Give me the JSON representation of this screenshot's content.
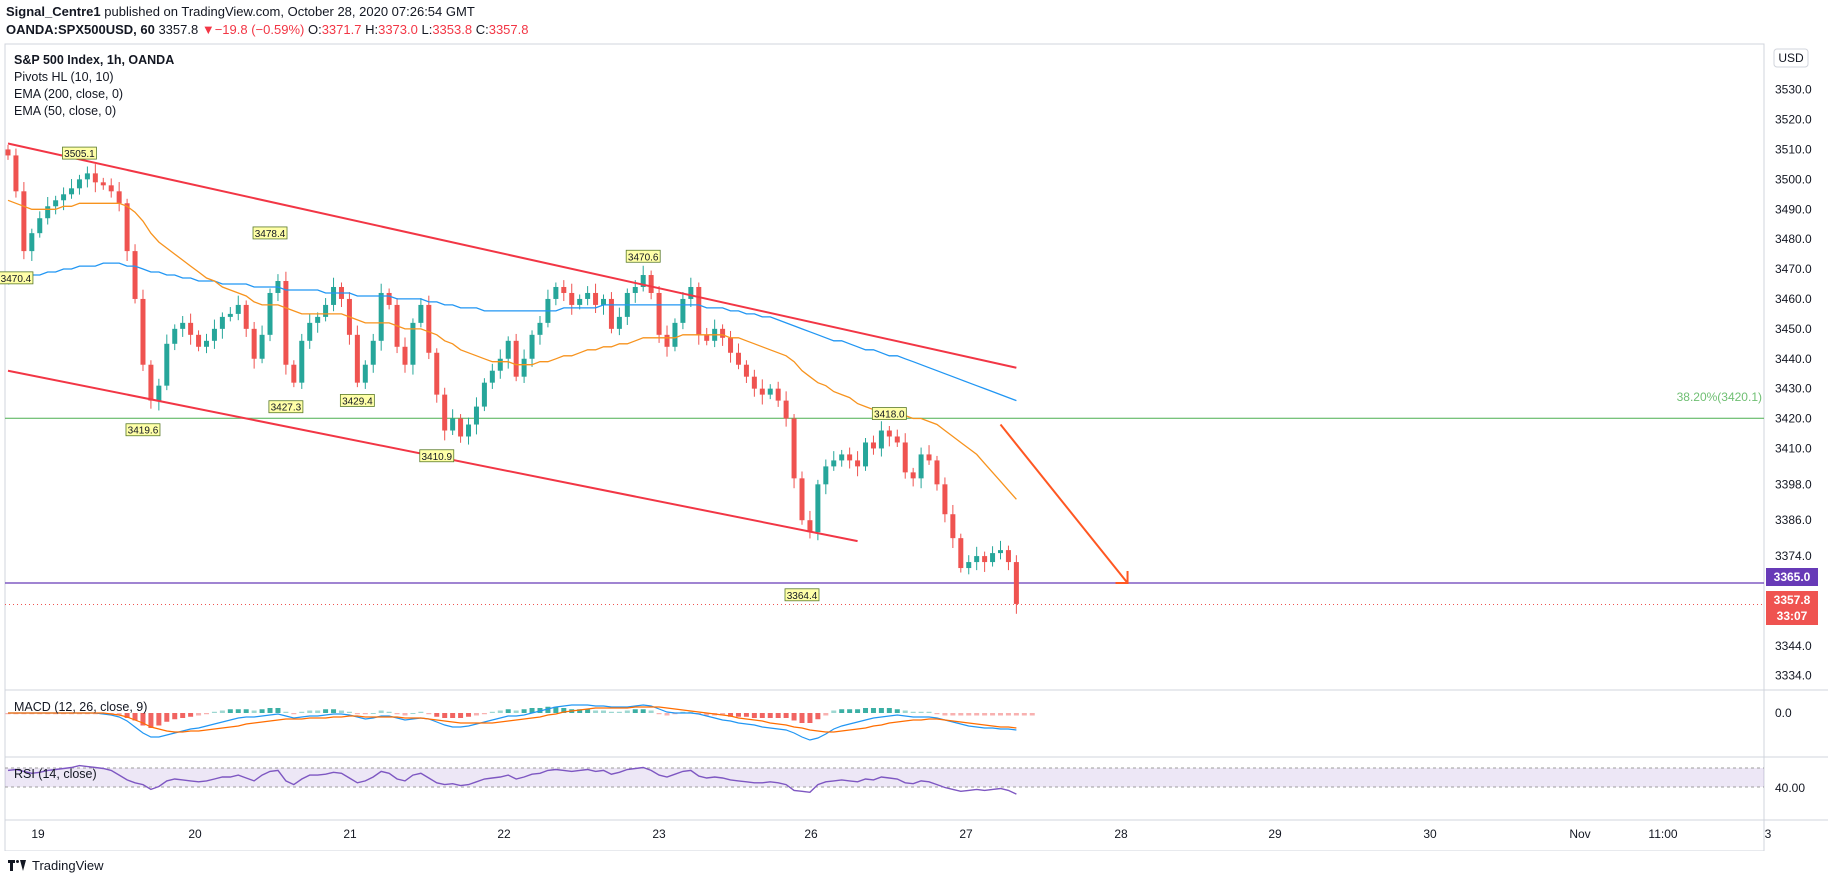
{
  "header": {
    "author": "Signal_Centre1",
    "published_text": " published on TradingView.com, October 28, 2020 07:26:54 GMT",
    "symbol": "OANDA:SPX500USD, 60",
    "last": "3357.8",
    "change_arrow": "▼",
    "change": "−19.8 (−0.59%)",
    "o_label": "O:",
    "o": "3371.7",
    "h_label": "H:",
    "h": "3373.0",
    "l_label": "L:",
    "l": "3353.8",
    "c_label": "C:",
    "c": "3357.8"
  },
  "legend": {
    "title": "S&P 500 Index, 1h, OANDA",
    "pivots": "Pivots HL (10, 10)",
    "ema200": "EMA (200, close, 0)",
    "ema50": "EMA (50, close, 0)"
  },
  "currency_badge": "USD",
  "macd_label": "MACD (12, 26, close, 9)",
  "rsi_label": "RSI (14, close)",
  "macd_axis": "0.0",
  "rsi_axis": "40.00",
  "fib_label": "38.20%(3420.1)",
  "price_badges": {
    "level": "3365.0",
    "last": "3357.8",
    "countdown": "33:07"
  },
  "colors": {
    "up": "#26a69a",
    "down": "#ef5350",
    "ema50": "#f7931e",
    "ema200": "#2196f3",
    "channel": "#f23645",
    "fib": "#4caf50",
    "level": "#673ab7",
    "arrow": "#ff5722",
    "macd": "#2196f3",
    "signal": "#ff6d00",
    "rsi": "#7e57c2"
  },
  "chart_data": {
    "type": "candlestick",
    "title": "S&P 500 Index, 1h, OANDA",
    "y_ticks": [
      3334.0,
      3344.0,
      3374.0,
      3386.0,
      3398.0,
      3410.0,
      3420.0,
      3430.0,
      3440.0,
      3450.0,
      3460.0,
      3470.0,
      3480.0,
      3490.0,
      3500.0,
      3510.0,
      3520.0,
      3530.0
    ],
    "x_ticks": [
      "19",
      "20",
      "21",
      "22",
      "23",
      "26",
      "27",
      "28",
      "29",
      "30",
      "Nov",
      "11:00",
      "3"
    ],
    "pivot_labels": [
      {
        "text": "3505.1",
        "bar": 9,
        "price": 3505.1,
        "type": "high"
      },
      {
        "text": "3470.4",
        "bar": 1,
        "price": 3470.4,
        "type": "low"
      },
      {
        "text": "3478.4",
        "bar": 33,
        "price": 3478.4,
        "type": "high"
      },
      {
        "text": "3419.6",
        "bar": 17,
        "price": 3419.6,
        "type": "low"
      },
      {
        "text": "3427.3",
        "bar": 35,
        "price": 3427.3,
        "type": "low"
      },
      {
        "text": "3429.4",
        "bar": 44,
        "price": 3429.4,
        "type": "low"
      },
      {
        "text": "3410.9",
        "bar": 54,
        "price": 3410.9,
        "type": "low"
      },
      {
        "text": "3470.6",
        "bar": 80,
        "price": 3470.6,
        "type": "high"
      },
      {
        "text": "3364.4",
        "bar": 100,
        "price": 3364.4,
        "type": "low"
      },
      {
        "text": "3418.0",
        "bar": 111,
        "price": 3418.0,
        "type": "high"
      }
    ],
    "fib_level": 3420.1,
    "horizontal_level": 3365.0,
    "last_price": 3357.8,
    "channel_upper": [
      {
        "bar": 0,
        "price": 3512.0
      },
      {
        "bar": 127,
        "price": 3437.0
      }
    ],
    "channel_lower": [
      {
        "bar": 0,
        "price": 3436.0
      },
      {
        "bar": 107,
        "price": 3379.0
      }
    ],
    "projection_arrow": [
      {
        "bar": 125,
        "price": 3418.0
      },
      {
        "bar": 141,
        "price": 3365.0
      }
    ],
    "closes": [
      3508,
      3496,
      3476,
      3482,
      3487,
      3491,
      3493,
      3495,
      3497,
      3500,
      3502,
      3499,
      3498,
      3496,
      3492,
      3476,
      3460,
      3438,
      3426,
      3431,
      3445,
      3450,
      3452,
      3448,
      3444,
      3446,
      3450,
      3454,
      3455,
      3458,
      3450,
      3440,
      3448,
      3462,
      3466,
      3438,
      3432,
      3446,
      3452,
      3454,
      3458,
      3464,
      3460,
      3448,
      3432,
      3438,
      3446,
      3462,
      3458,
      3444,
      3438,
      3452,
      3458,
      3442,
      3428,
      3416,
      3420,
      3414,
      3418,
      3424,
      3432,
      3436,
      3440,
      3446,
      3434,
      3440,
      3448,
      3452,
      3460,
      3464,
      3462,
      3458,
      3460,
      3462,
      3458,
      3460,
      3450,
      3454,
      3462,
      3464,
      3468,
      3462,
      3448,
      3444,
      3452,
      3460,
      3464,
      3448,
      3446,
      3450,
      3447,
      3442,
      3438,
      3434,
      3430,
      3428,
      3430,
      3426,
      3420,
      3400,
      3386,
      3382,
      3398,
      3404,
      3406,
      3408,
      3406,
      3404,
      3412,
      3410,
      3416,
      3414,
      3412,
      3402,
      3400,
      3408,
      3406,
      3398,
      3388,
      3380,
      3370,
      3372,
      3374,
      3372,
      3375,
      3376,
      3372,
      3358
    ],
    "ema50": [
      3493,
      3492,
      3491,
      3490,
      3490,
      3490,
      3490,
      3491,
      3491,
      3492,
      3492,
      3492,
      3492,
      3492,
      3492,
      3491,
      3489,
      3486,
      3482,
      3479,
      3477,
      3475,
      3473,
      3471,
      3469,
      3467,
      3466,
      3464,
      3463,
      3462,
      3461,
      3459,
      3458,
      3458,
      3458,
      3457,
      3456,
      3455,
      3455,
      3455,
      3455,
      3455,
      3455,
      3454,
      3453,
      3452,
      3452,
      3452,
      3452,
      3451,
      3450,
      3450,
      3450,
      3449,
      3448,
      3446,
      3445,
      3443,
      3442,
      3441,
      3440,
      3439,
      3439,
      3439,
      3438,
      3438,
      3438,
      3439,
      3439,
      3440,
      3441,
      3441,
      3442,
      3443,
      3443,
      3444,
      3444,
      3445,
      3445,
      3446,
      3447,
      3447,
      3447,
      3447,
      3447,
      3448,
      3448,
      3448,
      3448,
      3448,
      3448,
      3447,
      3447,
      3446,
      3445,
      3444,
      3443,
      3442,
      3441,
      3439,
      3436,
      3434,
      3432,
      3431,
      3429,
      3428,
      3427,
      3425,
      3424,
      3423,
      3423,
      3422,
      3422,
      3421,
      3420,
      3420,
      3419,
      3418,
      3416,
      3414,
      3412,
      3410,
      3408,
      3405,
      3402,
      3399,
      3396,
      3393
    ],
    "ema200": [
      3465,
      3466,
      3467,
      3468,
      3468,
      3469,
      3469,
      3470,
      3470,
      3471,
      3471,
      3471,
      3472,
      3472,
      3472,
      3471,
      3471,
      3470,
      3469,
      3469,
      3468,
      3468,
      3467,
      3467,
      3466,
      3466,
      3466,
      3465,
      3465,
      3465,
      3465,
      3464,
      3464,
      3464,
      3464,
      3463,
      3463,
      3463,
      3463,
      3463,
      3462,
      3462,
      3462,
      3462,
      3461,
      3461,
      3461,
      3461,
      3461,
      3460,
      3460,
      3460,
      3460,
      3459,
      3459,
      3458,
      3458,
      3457,
      3457,
      3457,
      3456,
      3456,
      3456,
      3456,
      3456,
      3456,
      3456,
      3456,
      3456,
      3456,
      3457,
      3457,
      3457,
      3457,
      3457,
      3458,
      3458,
      3458,
      3458,
      3458,
      3458,
      3458,
      3458,
      3458,
      3458,
      3458,
      3458,
      3458,
      3457,
      3457,
      3457,
      3456,
      3456,
      3455,
      3455,
      3454,
      3454,
      3453,
      3452,
      3451,
      3450,
      3449,
      3448,
      3447,
      3446,
      3446,
      3445,
      3444,
      3443,
      3443,
      3442,
      3441,
      3441,
      3440,
      3439,
      3438,
      3437,
      3436,
      3435,
      3434,
      3433,
      3432,
      3431,
      3430,
      3429,
      3428,
      3427,
      3426
    ],
    "macd_hist": [
      -1,
      -1,
      -1,
      -1,
      -1,
      -1,
      -1,
      -1,
      -1,
      -1,
      -1,
      -1,
      -1,
      -1,
      -2,
      -4,
      -6,
      -10,
      -12,
      -10,
      -7,
      -5,
      -4,
      -3,
      -2,
      -1,
      1,
      2,
      3,
      3,
      3,
      2,
      3,
      4,
      4,
      1,
      -1,
      1,
      2,
      2,
      3,
      3,
      2,
      1,
      -1,
      -1,
      0,
      2,
      1,
      -1,
      -2,
      0,
      1,
      -1,
      -3,
      -4,
      -4,
      -4,
      -3,
      -2,
      -1,
      1,
      2,
      3,
      2,
      3,
      4,
      4,
      5,
      5,
      4,
      3,
      3,
      3,
      2,
      2,
      1,
      1,
      2,
      3,
      3,
      2,
      -1,
      -2,
      -1,
      1,
      1,
      -1,
      -2,
      -2,
      -2,
      -3,
      -3,
      -3,
      -4,
      -4,
      -4,
      -4,
      -4,
      -6,
      -8,
      -8,
      -5,
      -2,
      2,
      3,
      3,
      3,
      4,
      4,
      4,
      4,
      3,
      2,
      1,
      1,
      1,
      -1,
      -2,
      -2,
      -2,
      -2,
      -2,
      -2,
      -2,
      -2,
      -2,
      -2,
      -2,
      -2
    ],
    "macd_line": [
      0,
      0,
      0,
      0,
      0,
      0,
      0,
      0,
      0,
      0,
      0,
      0,
      -1,
      -2,
      -4,
      -8,
      -14,
      -20,
      -24,
      -24,
      -22,
      -20,
      -18,
      -16,
      -15,
      -13,
      -11,
      -9,
      -7,
      -5,
      -4,
      -4,
      -3,
      -2,
      -1,
      -3,
      -5,
      -4,
      -3,
      -3,
      -2,
      -1,
      -1,
      -2,
      -4,
      -6,
      -5,
      -3,
      -3,
      -5,
      -7,
      -6,
      -5,
      -6,
      -9,
      -12,
      -14,
      -14,
      -13,
      -11,
      -9,
      -7,
      -5,
      -3,
      -3,
      -2,
      0,
      2,
      4,
      6,
      7,
      8,
      8,
      8,
      7,
      7,
      6,
      6,
      6,
      7,
      8,
      7,
      4,
      1,
      0,
      0,
      0,
      -1,
      -3,
      -5,
      -7,
      -8,
      -10,
      -11,
      -12,
      -14,
      -15,
      -16,
      -17,
      -20,
      -24,
      -27,
      -25,
      -21,
      -16,
      -13,
      -11,
      -9,
      -7,
      -5,
      -4,
      -3,
      -2,
      -3,
      -4,
      -4,
      -4,
      -5,
      -7,
      -9,
      -11,
      -13,
      -14,
      -15,
      -15,
      -16,
      -16,
      -17
    ],
    "signal_line": [
      0,
      0,
      0,
      0,
      0,
      0,
      0,
      0,
      0,
      0,
      0,
      0,
      0,
      -1,
      -2,
      -4,
      -7,
      -10,
      -14,
      -16,
      -18,
      -19,
      -19,
      -18,
      -18,
      -17,
      -16,
      -15,
      -14,
      -13,
      -11,
      -10,
      -9,
      -8,
      -7,
      -6,
      -6,
      -6,
      -5,
      -5,
      -5,
      -4,
      -4,
      -3,
      -3,
      -4,
      -4,
      -4,
      -4,
      -4,
      -5,
      -5,
      -5,
      -6,
      -7,
      -8,
      -9,
      -10,
      -10,
      -10,
      -10,
      -10,
      -9,
      -8,
      -7,
      -6,
      -5,
      -4,
      -2,
      -1,
      1,
      2,
      3,
      4,
      5,
      5,
      5,
      5,
      5,
      6,
      6,
      6,
      6,
      5,
      4,
      3,
      2,
      1,
      0,
      -1,
      -2,
      -3,
      -5,
      -6,
      -7,
      -8,
      -10,
      -11,
      -12,
      -14,
      -15,
      -17,
      -18,
      -19,
      -19,
      -18,
      -17,
      -16,
      -15,
      -13,
      -12,
      -10,
      -9,
      -8,
      -7,
      -7,
      -6,
      -6,
      -7,
      -8,
      -9,
      -10,
      -11,
      -12,
      -13,
      -14,
      -14,
      -15
    ],
    "rsi": [
      55,
      56,
      54,
      52,
      53,
      55,
      56,
      57,
      58,
      60,
      59,
      58,
      57,
      55,
      50,
      45,
      42,
      40,
      35,
      38,
      44,
      46,
      45,
      44,
      43,
      44,
      46,
      48,
      48,
      50,
      47,
      44,
      50,
      54,
      55,
      44,
      40,
      46,
      50,
      50,
      51,
      53,
      52,
      47,
      42,
      44,
      48,
      54,
      52,
      46,
      44,
      50,
      52,
      47,
      42,
      40,
      41,
      39,
      40,
      43,
      46,
      47,
      48,
      50,
      46,
      48,
      51,
      52,
      55,
      56,
      55,
      54,
      55,
      56,
      54,
      55,
      51,
      53,
      56,
      57,
      58,
      55,
      50,
      48,
      51,
      54,
      55,
      49,
      47,
      48,
      47,
      45,
      44,
      43,
      42,
      42,
      43,
      42,
      40,
      34,
      33,
      32,
      40,
      43,
      44,
      45,
      44,
      43,
      46,
      45,
      48,
      47,
      46,
      42,
      41,
      44,
      43,
      40,
      37,
      35,
      33,
      34,
      35,
      34,
      35,
      36,
      34,
      30
    ]
  }
}
